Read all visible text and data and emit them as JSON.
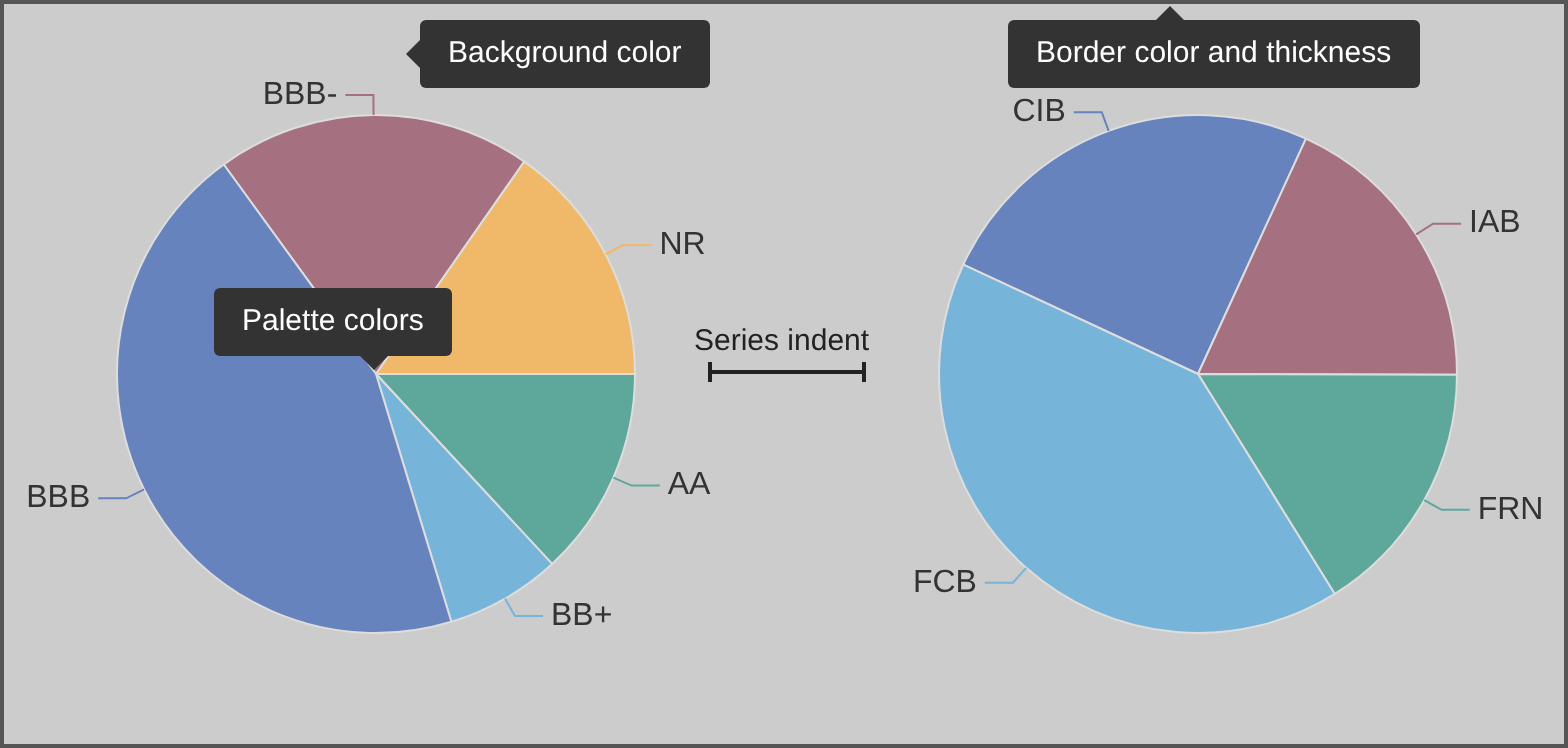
{
  "chart_data": [
    {
      "type": "pie",
      "categories": [
        "BBB-",
        "NR",
        "AA",
        "BB+",
        "BBB"
      ],
      "values": [
        19.7,
        15.3,
        13.1,
        7.2,
        44.7
      ],
      "colors": [
        "#a5707f",
        "#f0b96a",
        "#5ea79b",
        "#76b4d9",
        "#6683bd"
      ],
      "annotations": [
        "Background color",
        "Palette colors"
      ]
    },
    {
      "type": "pie",
      "categories": [
        "CIB",
        "IAB",
        "FRN",
        "FCB"
      ],
      "values": [
        24.9,
        18.2,
        16.1,
        40.8
      ],
      "colors": [
        "#6683bd",
        "#a5707f",
        "#5ea79b",
        "#76b4d9"
      ],
      "annotations": [
        "Border color and thickness",
        "Series indent"
      ]
    }
  ]
}
